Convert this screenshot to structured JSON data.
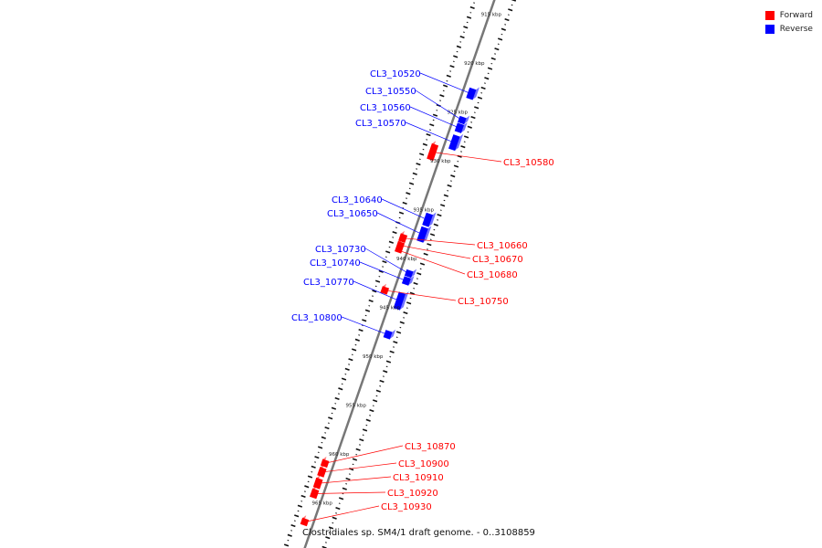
{
  "legend": {
    "forward_label": "Forward",
    "reverse_label": "Reverse",
    "forward_color": "#ff0000",
    "reverse_color": "#0000ff"
  },
  "caption": "Clostridiales sp. SM4/1 draft genome. - 0..3108859",
  "axis": {
    "unit": "kbp",
    "ticks": [
      915,
      920,
      925,
      930,
      935,
      940,
      945,
      950,
      955,
      960,
      965
    ]
  },
  "genes": {
    "reverse": [
      {
        "label": "CL3_10520",
        "start": 922.4,
        "end": 923.4
      },
      {
        "label": "CL3_10550",
        "start": 925.3,
        "end": 925.9
      },
      {
        "label": "CL3_10560",
        "start": 926.0,
        "end": 926.8
      },
      {
        "label": "CL3_10570",
        "start": 927.2,
        "end": 928.6
      },
      {
        "label": "CL3_10640",
        "start": 935.2,
        "end": 936.4
      },
      {
        "label": "CL3_10650",
        "start": 936.6,
        "end": 938.0
      },
      {
        "label": "CL3_10730",
        "start": 941.0,
        "end": 941.6
      },
      {
        "label": "CL3_10740",
        "start": 941.7,
        "end": 942.4
      },
      {
        "label": "CL3_10770",
        "start": 943.3,
        "end": 944.9
      },
      {
        "label": "CL3_10800",
        "start": 947.2,
        "end": 947.9
      }
    ],
    "forward": [
      {
        "label": "CL3_10580",
        "start": 928.7,
        "end": 930.2
      },
      {
        "label": "CL3_10660",
        "start": 937.9,
        "end": 938.6
      },
      {
        "label": "CL3_10670",
        "start": 938.7,
        "end": 939.3
      },
      {
        "label": "CL3_10680",
        "start": 939.3,
        "end": 939.7
      },
      {
        "label": "CL3_10750",
        "start": 943.3,
        "end": 943.9
      },
      {
        "label": "CL3_10870",
        "start": 961.0,
        "end": 961.6
      },
      {
        "label": "CL3_10900",
        "start": 961.8,
        "end": 962.6
      },
      {
        "label": "CL3_10910",
        "start": 962.9,
        "end": 963.8
      },
      {
        "label": "CL3_10920",
        "start": 964.0,
        "end": 964.8
      },
      {
        "label": "CL3_10930",
        "start": 967.0,
        "end": 967.6
      }
    ]
  }
}
